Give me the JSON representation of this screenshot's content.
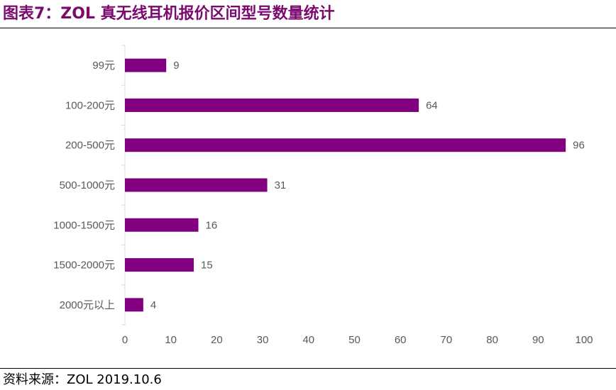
{
  "header": {
    "title": "图表7：ZOL 真无线耳机报价区间型号数量统计"
  },
  "footer": {
    "source": "资料来源：ZOL 2019.10.6"
  },
  "chart_data": {
    "type": "bar",
    "orientation": "horizontal",
    "categories": [
      "99元",
      "100-200元",
      "200-500元",
      "500-1000元",
      "1000-1500元",
      "1500-2000元",
      "2000元以上"
    ],
    "values": [
      9,
      64,
      96,
      31,
      16,
      15,
      4
    ],
    "xlim": [
      0,
      100
    ],
    "xticks": [
      0,
      10,
      20,
      30,
      40,
      50,
      60,
      70,
      80,
      90,
      100
    ],
    "title": "",
    "xlabel": "",
    "ylabel": "",
    "grid": false,
    "legend": "none",
    "bar_color": "#800080",
    "data_labels": true
  }
}
